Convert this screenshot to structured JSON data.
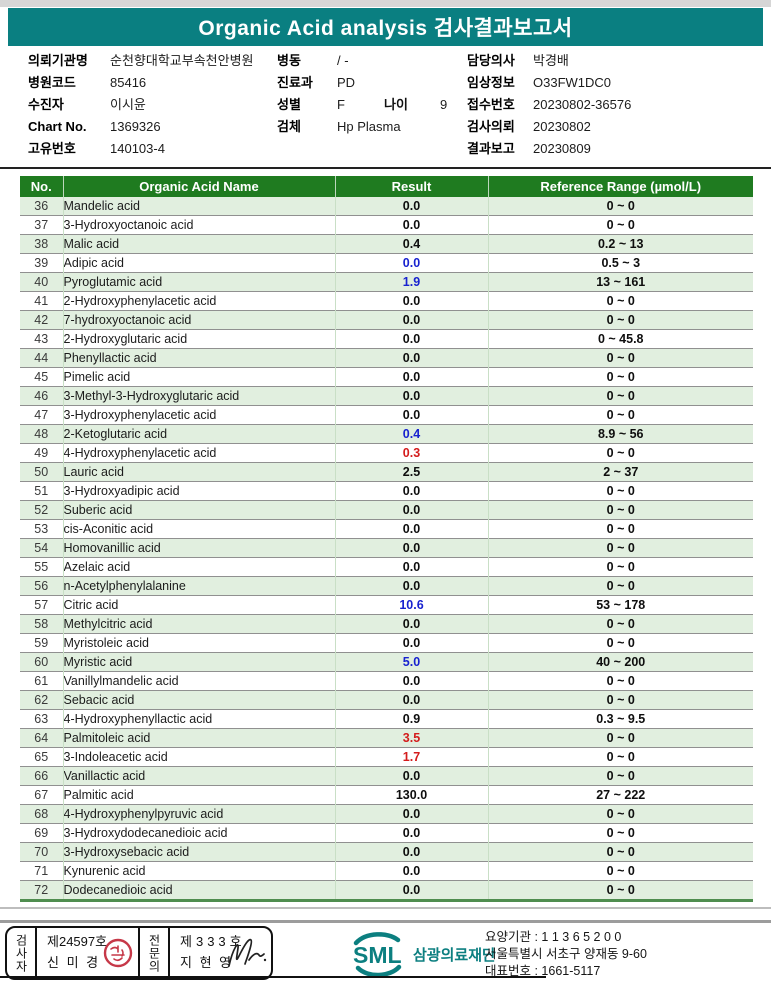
{
  "page": {
    "title": "Organic Acid analysis 검사결과보고서"
  },
  "colors": {
    "title_bar": "#0a7f81",
    "table_header": "#1f7b20",
    "row_alt_green": "#e1efdf",
    "result_low_blue": "#1822cf",
    "result_high_red": "#d41c1c",
    "stamp_red": "#c63848",
    "brand_teal": "#0c7f80"
  },
  "patient_info": {
    "col1": [
      {
        "label": "의뢰기관명",
        "value": "순천향대학교부속천안병원"
      },
      {
        "label": "병원코드",
        "value": "85416"
      },
      {
        "label": "수진자",
        "value": "이시윤"
      },
      {
        "label": "Chart No.",
        "value": "1369326"
      },
      {
        "label": "고유번호",
        "value": "140103-4"
      }
    ],
    "col2": [
      {
        "label": "병동",
        "value": "/ -"
      },
      {
        "label": "진료과",
        "value": "PD"
      },
      {
        "label": "성별",
        "value": "F"
      },
      {
        "label": "검체",
        "value": "Hp Plasma"
      }
    ],
    "age": {
      "label": "나이",
      "value": "9"
    },
    "col3": [
      {
        "label": "담당의사",
        "value": "박경배"
      },
      {
        "label": "임상정보",
        "value": "O33FW1DC0"
      },
      {
        "label": "접수번호",
        "value": "20230802-36576"
      },
      {
        "label": "검사의뢰",
        "value": "20230802"
      },
      {
        "label": "결과보고",
        "value": "20230809"
      }
    ]
  },
  "table": {
    "headers": [
      "No.",
      "Organic Acid Name",
      "Result",
      "Reference Range (µmol/L)"
    ],
    "rows": [
      {
        "no": "36",
        "name": "Mandelic acid",
        "result": "0.0",
        "flag": "normal",
        "range": "0 ~ 0"
      },
      {
        "no": "37",
        "name": "3-Hydroxyoctanoic acid",
        "result": "0.0",
        "flag": "normal",
        "range": "0 ~ 0"
      },
      {
        "no": "38",
        "name": "Malic acid",
        "result": "0.4",
        "flag": "normal",
        "range": "0.2 ~ 13"
      },
      {
        "no": "39",
        "name": "Adipic acid",
        "result": "0.0",
        "flag": "low",
        "range": "0.5 ~ 3"
      },
      {
        "no": "40",
        "name": "Pyroglutamic acid",
        "result": "1.9",
        "flag": "low",
        "range": "13 ~ 161"
      },
      {
        "no": "41",
        "name": "2-Hydroxyphenylacetic acid",
        "result": "0.0",
        "flag": "normal",
        "range": "0 ~ 0"
      },
      {
        "no": "42",
        "name": "7-hydroxyoctanoic acid",
        "result": "0.0",
        "flag": "normal",
        "range": "0 ~ 0"
      },
      {
        "no": "43",
        "name": "2-Hydroxyglutaric acid",
        "result": "0.0",
        "flag": "normal",
        "range": "0 ~ 45.8"
      },
      {
        "no": "44",
        "name": "Phenyllactic acid",
        "result": "0.0",
        "flag": "normal",
        "range": "0 ~ 0"
      },
      {
        "no": "45",
        "name": "Pimelic acid",
        "result": "0.0",
        "flag": "normal",
        "range": "0 ~ 0"
      },
      {
        "no": "46",
        "name": "3-Methyl-3-Hydroxyglutaric acid",
        "result": "0.0",
        "flag": "normal",
        "range": "0 ~ 0"
      },
      {
        "no": "47",
        "name": "3-Hydroxyphenylacetic acid",
        "result": "0.0",
        "flag": "normal",
        "range": "0 ~ 0"
      },
      {
        "no": "48",
        "name": "2-Ketoglutaric acid",
        "result": "0.4",
        "flag": "low",
        "range": "8.9 ~ 56"
      },
      {
        "no": "49",
        "name": "4-Hydroxyphenylacetic acid",
        "result": "0.3",
        "flag": "high",
        "range": "0 ~ 0"
      },
      {
        "no": "50",
        "name": "Lauric acid",
        "result": "2.5",
        "flag": "normal",
        "range": "2 ~ 37"
      },
      {
        "no": "51",
        "name": "3-Hydroxyadipic acid",
        "result": "0.0",
        "flag": "normal",
        "range": "0 ~ 0"
      },
      {
        "no": "52",
        "name": "Suberic acid",
        "result": "0.0",
        "flag": "normal",
        "range": "0 ~ 0"
      },
      {
        "no": "53",
        "name": "cis-Aconitic acid",
        "result": "0.0",
        "flag": "normal",
        "range": "0 ~ 0"
      },
      {
        "no": "54",
        "name": "Homovanillic acid",
        "result": "0.0",
        "flag": "normal",
        "range": "0 ~ 0"
      },
      {
        "no": "55",
        "name": "Azelaic acid",
        "result": "0.0",
        "flag": "normal",
        "range": "0 ~ 0"
      },
      {
        "no": "56",
        "name": "n-Acetylphenylalanine",
        "result": "0.0",
        "flag": "normal",
        "range": "0 ~ 0"
      },
      {
        "no": "57",
        "name": "Citric acid",
        "result": "10.6",
        "flag": "low",
        "range": "53 ~ 178"
      },
      {
        "no": "58",
        "name": "Methylcitric acid",
        "result": "0.0",
        "flag": "normal",
        "range": "0 ~ 0"
      },
      {
        "no": "59",
        "name": "Myristoleic acid",
        "result": "0.0",
        "flag": "normal",
        "range": "0 ~ 0"
      },
      {
        "no": "60",
        "name": "Myristic acid",
        "result": "5.0",
        "flag": "low",
        "range": "40 ~ 200"
      },
      {
        "no": "61",
        "name": "Vanillylmandelic acid",
        "result": "0.0",
        "flag": "normal",
        "range": "0 ~ 0"
      },
      {
        "no": "62",
        "name": "Sebacic acid",
        "result": "0.0",
        "flag": "normal",
        "range": "0 ~ 0"
      },
      {
        "no": "63",
        "name": "4-Hydroxyphenyllactic acid",
        "result": "0.9",
        "flag": "normal",
        "range": "0.3 ~ 9.5"
      },
      {
        "no": "64",
        "name": "Palmitoleic acid",
        "result": "3.5",
        "flag": "high",
        "range": "0 ~ 0"
      },
      {
        "no": "65",
        "name": "3-Indoleacetic acid",
        "result": "1.7",
        "flag": "high",
        "range": "0 ~ 0"
      },
      {
        "no": "66",
        "name": "Vanillactic acid",
        "result": "0.0",
        "flag": "normal",
        "range": "0 ~ 0"
      },
      {
        "no": "67",
        "name": "Palmitic acid",
        "result": "130.0",
        "flag": "normal",
        "range": "27 ~ 222"
      },
      {
        "no": "68",
        "name": "4-Hydroxyphenylpyruvic acid",
        "result": "0.0",
        "flag": "normal",
        "range": "0 ~ 0"
      },
      {
        "no": "69",
        "name": "3-Hydroxydodecanedioic acid",
        "result": "0.0",
        "flag": "normal",
        "range": "0 ~ 0"
      },
      {
        "no": "70",
        "name": "3-Hydroxysebacic acid",
        "result": "0.0",
        "flag": "normal",
        "range": "0 ~ 0"
      },
      {
        "no": "71",
        "name": "Kynurenic acid",
        "result": "0.0",
        "flag": "normal",
        "range": "0 ~ 0"
      },
      {
        "no": "72",
        "name": "Dodecanedioic acid",
        "result": "0.0",
        "flag": "normal",
        "range": "0 ~ 0"
      }
    ]
  },
  "footer": {
    "examiner": {
      "role": "검사자",
      "cert_no": "제24597호",
      "name": "신 미 경",
      "stamp_icon": "red-seal-stamp"
    },
    "specialist": {
      "role": "전문의",
      "cert_no": "제333호",
      "name": "지 현 영",
      "signature_icon": "handwritten-signature"
    },
    "company": {
      "logo_text": "SML",
      "name": "삼광의료재단",
      "lines": [
        "요양기관 : 1 1 3 6 5 2 0 0",
        "서울특별시 서초구 양재동 9-60",
        "대표번호 : 1661-5117"
      ]
    }
  }
}
